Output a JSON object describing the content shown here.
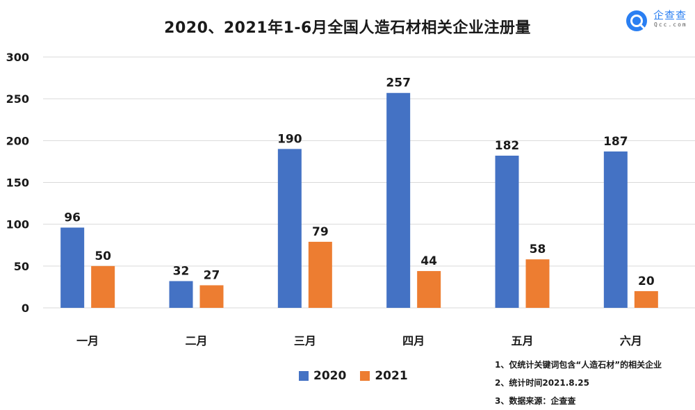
{
  "brand": {
    "name": "企查查",
    "domain": "Qcc.com",
    "color": "#2a7ff2"
  },
  "chart_data": {
    "type": "bar",
    "title": "2020、2021年1-6月全国人造石材相关企业注册量",
    "categories": [
      "一月",
      "二月",
      "三月",
      "四月",
      "五月",
      "六月"
    ],
    "series": [
      {
        "name": "2020",
        "color": "#4472c4",
        "values": [
          96,
          32,
          190,
          257,
          182,
          187
        ]
      },
      {
        "name": "2021",
        "color": "#ed7d31",
        "values": [
          50,
          27,
          79,
          44,
          58,
          20
        ]
      }
    ],
    "yticks": [
      0,
      50,
      100,
      150,
      200,
      250,
      300
    ],
    "ylim": [
      0,
      300
    ],
    "grid": true,
    "legend_position": "bottom"
  },
  "notes": [
    "1、仅统计关键词包含“人造石材”的相关企业",
    "2、统计时间2021.8.25",
    "3、数据来源：企查查"
  ]
}
